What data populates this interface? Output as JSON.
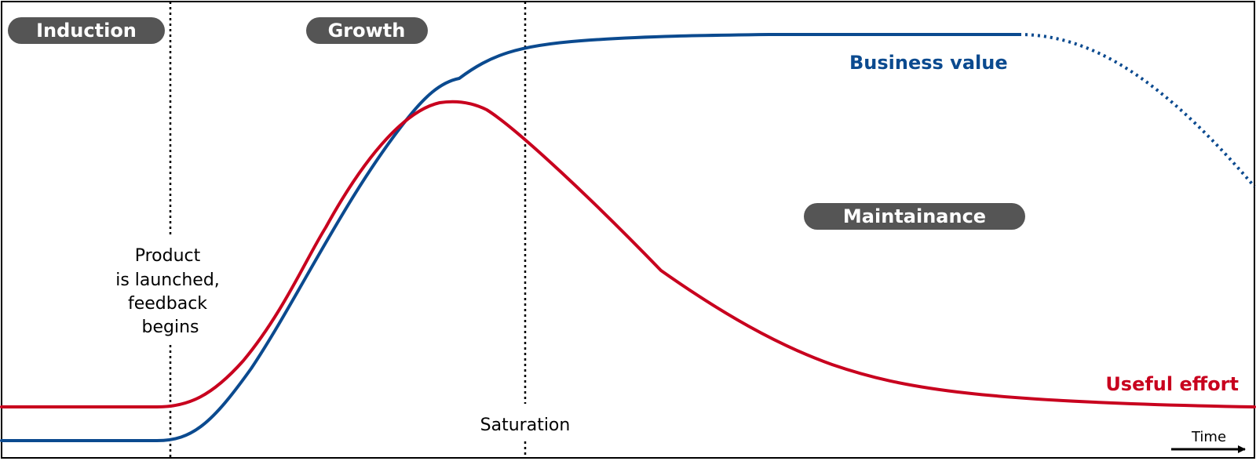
{
  "colors": {
    "business_value": "#0b4a8f",
    "useful_effort": "#c8001e",
    "phase_badge": "#555555",
    "frame": "#000000"
  },
  "phases": {
    "induction": "Induction",
    "growth": "Growth",
    "maintenance": "Maintainance"
  },
  "markers": {
    "launch": [
      "Product",
      "is launched,",
      "feedback",
      "begins"
    ],
    "saturation": "Saturation"
  },
  "series": {
    "business_value": "Business value",
    "useful_effort": "Useful effort"
  },
  "axis": {
    "x_label": "Time"
  }
}
